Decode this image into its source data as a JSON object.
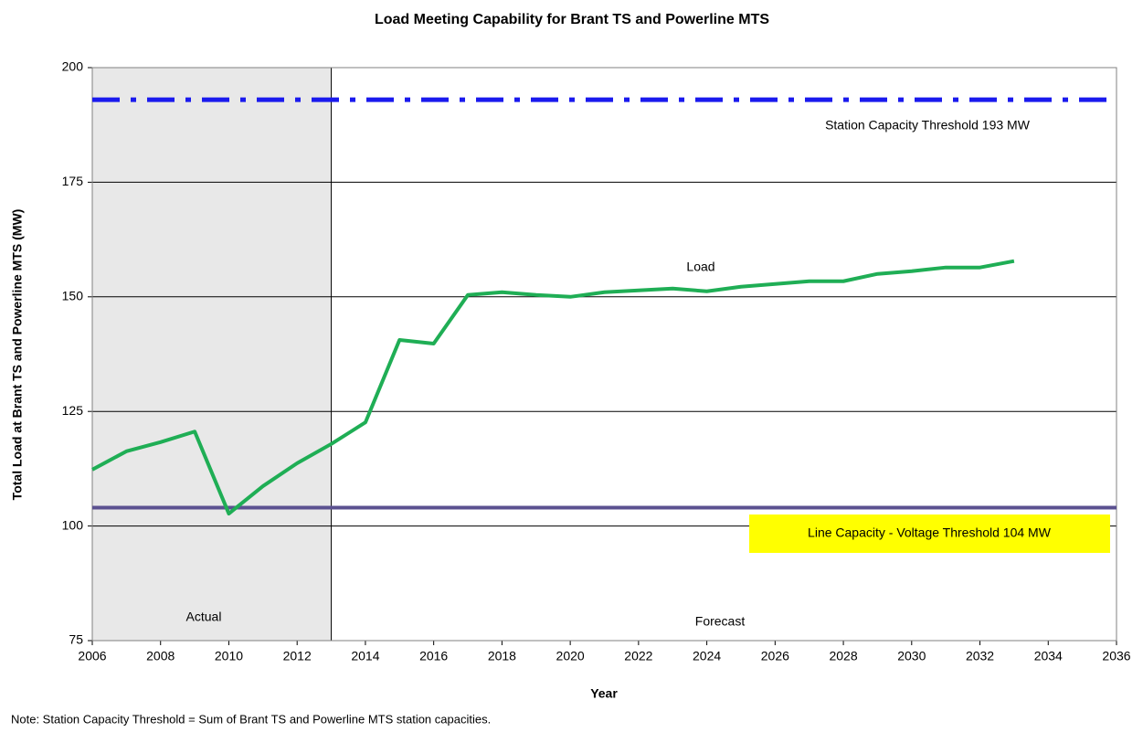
{
  "chart_data": {
    "type": "line",
    "title": "Load Meeting Capability for Brant TS and Powerline MTS",
    "x_label": "Year",
    "y_label": "Total Load at Brant TS and Powerline MTS (MW)",
    "note": "Note: Station Capacity Threshold = Sum of Brant TS and Powerline MTS station capacities.",
    "x": [
      2006,
      2007,
      2008,
      2009,
      2010,
      2011,
      2012,
      2013,
      2014,
      2015,
      2016,
      2017,
      2018,
      2019,
      2020,
      2021,
      2022,
      2023,
      2024,
      2025,
      2026,
      2027,
      2028,
      2029,
      2030,
      2031,
      2032,
      2033
    ],
    "series": [
      {
        "name": "Load",
        "color": "#1fae55",
        "values": [
          112.3,
          116.3,
          118.3,
          120.6,
          102.7,
          108.7,
          113.7,
          117.9,
          122.6,
          140.6,
          139.8,
          150.4,
          151.0,
          150.4,
          150.0,
          151.0,
          151.4,
          151.8,
          151.2,
          152.2,
          152.8,
          153.4,
          153.4,
          155.0,
          155.6,
          156.4,
          156.4,
          157.8
        ]
      }
    ],
    "thresholds": [
      {
        "label": "Station Capacity Threshold 193 MW",
        "value": 193,
        "color": "#1a1aee",
        "style": "dashdot"
      },
      {
        "label": "Line Capacity - Voltage Threshold 104 MW",
        "value": 104,
        "color": "#5b5190",
        "style": "solid",
        "label_background": "#ffff00"
      }
    ],
    "regions": [
      {
        "label": "Actual",
        "from": 2006,
        "to": 2013,
        "color": "#e8e8e8"
      },
      {
        "label": "Forecast",
        "from": 2013,
        "to": 2036,
        "color": "#ffffff"
      }
    ],
    "xlim": [
      2006,
      2036
    ],
    "xticks": [
      2006,
      2008,
      2010,
      2012,
      2014,
      2016,
      2018,
      2020,
      2022,
      2024,
      2026,
      2028,
      2030,
      2032,
      2034,
      2036
    ],
    "ylim": [
      75,
      200
    ],
    "yticks": [
      75,
      100,
      125,
      150,
      175,
      200
    ],
    "grid": true
  }
}
